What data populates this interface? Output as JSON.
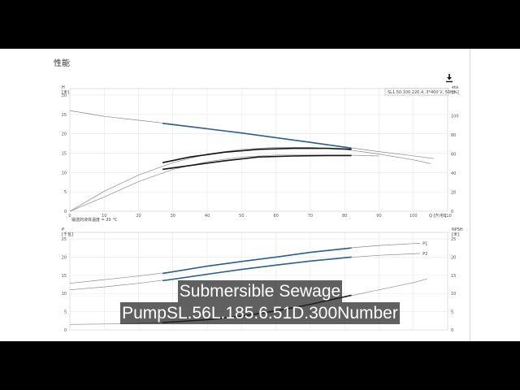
{
  "page": {
    "section_title": "性能",
    "download_icon": "download-icon",
    "caption_lines": [
      "Submersible Sewage",
      "PumpSL.56L.185.6.51D.300Number"
    ]
  },
  "chart_data": [
    {
      "type": "line",
      "legend_box": "SL1.50.100.220.4..3*400 V, 50Hz",
      "left_axis": {
        "unit": "[米]",
        "top_label": "H",
        "ylim": [
          0,
          30
        ],
        "ticks": [
          0,
          5,
          10,
          15,
          20,
          25,
          30
        ]
      },
      "right_axis": {
        "unit": "[%]",
        "top_label": "eta",
        "ylim": [
          0,
          100
        ],
        "ticks": [
          0,
          20,
          40,
          60,
          80,
          100
        ]
      },
      "x": {
        "label": "Q [升/秒]",
        "xlim": [
          0,
          110
        ],
        "ticks": [
          0,
          10,
          20,
          30,
          40,
          50,
          60,
          70,
          80,
          90,
          100,
          110
        ],
        "tick_labels": [
          "0",
          "10",
          "20",
          "30",
          "40",
          "50",
          "60",
          "70",
          "80",
          "90",
          "100",
          "110"
        ]
      },
      "note": "输送的液体温度 = 20 °C",
      "series": [
        {
          "axis": "left",
          "style": "thin",
          "x": [
            0,
            10,
            20,
            30,
            40,
            50,
            60,
            70,
            80,
            90,
            100,
            106
          ],
          "y": [
            26,
            24.5,
            23.5,
            22.5,
            21.3,
            20.2,
            19,
            17.8,
            16.6,
            15.4,
            14.3,
            13.6
          ]
        },
        {
          "axis": "left",
          "style": "operating",
          "x": [
            27,
            40,
            50,
            60,
            70,
            82
          ],
          "y": [
            22.7,
            21.3,
            20.2,
            19,
            17.8,
            16.3
          ]
        },
        {
          "axis": "right",
          "style": "thin",
          "x": [
            0,
            10,
            20,
            30,
            40,
            50,
            60,
            70,
            80,
            90,
            100,
            105
          ],
          "y": [
            0,
            21,
            38,
            51,
            60,
            65,
            67,
            67,
            65,
            60,
            54,
            50
          ]
        },
        {
          "axis": "right",
          "style": "thick",
          "x": [
            27,
            35,
            45,
            55,
            65,
            75,
            82
          ],
          "y": [
            51,
            57,
            62,
            65,
            66,
            66,
            65
          ]
        },
        {
          "axis": "right",
          "style": "thin",
          "x": [
            0,
            10,
            20,
            30,
            40,
            50,
            60,
            70,
            80,
            90
          ],
          "y": [
            0,
            15,
            31,
            44,
            52,
            57,
            59,
            59,
            59,
            58
          ]
        },
        {
          "axis": "right",
          "style": "thick",
          "x": [
            27,
            35,
            45,
            55,
            65,
            75,
            82
          ],
          "y": [
            44,
            48,
            53,
            57,
            58,
            58.5,
            58.5
          ]
        }
      ]
    },
    {
      "type": "line",
      "left_axis": {
        "unit": "[千瓦]",
        "top_label": "P",
        "ylim": [
          0,
          25
        ],
        "ticks": [
          0,
          5,
          10,
          15,
          20,
          25
        ]
      },
      "right_axis": {
        "unit": "[米]",
        "top_label": "NPSH",
        "ylim": [
          0,
          25
        ],
        "ticks": [
          0,
          5,
          10,
          15,
          20,
          25
        ]
      },
      "x": {
        "xlim": [
          0,
          110
        ]
      },
      "series": [
        {
          "name": "P1",
          "axis": "left",
          "style": "thin",
          "x": [
            0,
            10,
            20,
            30,
            40,
            50,
            60,
            70,
            80,
            90,
            100,
            102
          ],
          "y": [
            12.8,
            13.8,
            14.8,
            16,
            17.5,
            18.8,
            20,
            21.3,
            22.4,
            23.2,
            23.7,
            23.8
          ]
        },
        {
          "name": "P1",
          "axis": "left",
          "style": "operating",
          "x": [
            27,
            40,
            50,
            60,
            70,
            82
          ],
          "y": [
            15.5,
            17.5,
            18.8,
            20,
            21.3,
            22.5
          ]
        },
        {
          "name": "P2",
          "axis": "left",
          "style": "thin",
          "x": [
            0,
            10,
            20,
            30,
            40,
            50,
            60,
            70,
            80,
            90,
            100,
            102
          ],
          "y": [
            11,
            11.8,
            12.8,
            14,
            15.3,
            16.6,
            17.8,
            18.9,
            19.8,
            20.5,
            20.9,
            21
          ]
        },
        {
          "name": "P2",
          "axis": "left",
          "style": "operating",
          "x": [
            27,
            40,
            50,
            60,
            70,
            82
          ],
          "y": [
            13.5,
            15.3,
            16.6,
            17.8,
            18.9,
            20
          ]
        },
        {
          "axis": "right",
          "style": "thin",
          "x": [
            0,
            10,
            20,
            30,
            40,
            50,
            60,
            70,
            80,
            90,
            100,
            104
          ],
          "y": [
            1.5,
            1.6,
            1.8,
            2.2,
            2.8,
            3.8,
            5.2,
            7,
            9,
            11,
            13,
            14
          ]
        },
        {
          "axis": "right",
          "style": "thick",
          "x": [
            27,
            40,
            50,
            60,
            70,
            82
          ],
          "y": [
            2,
            2.8,
            3.8,
            5.2,
            7,
            9.5
          ]
        }
      ]
    }
  ]
}
